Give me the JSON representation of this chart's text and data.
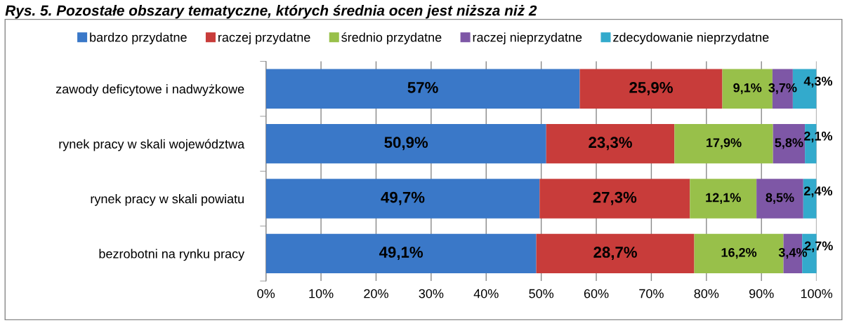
{
  "chart_data": {
    "type": "bar",
    "orientation": "horizontal",
    "stacked": true,
    "title": "Rys. 5. Pozostałe obszary tematyczne, których średnia ocen jest niższa niż 2",
    "categories": [
      "zawody deficytowe i nadwyżkowe",
      "rynek pracy w skali województwa",
      "rynek pracy w skali powiatu",
      "bezrobotni na rynku pracy"
    ],
    "series": [
      {
        "name": "bardzo przydatne",
        "color": "#3a78c8",
        "values": [
          57,
          50.9,
          49.7,
          49.1
        ],
        "value_labels": [
          "57%",
          "50,9%",
          "49,7%",
          "49,1%"
        ]
      },
      {
        "name": "raczej przydatne",
        "color": "#c83c3a",
        "values": [
          25.9,
          23.3,
          27.3,
          28.7
        ],
        "value_labels": [
          "25,9%",
          "23,3%",
          "27,3%",
          "28,7%"
        ]
      },
      {
        "name": "średnio przydatne",
        "color": "#98c04a",
        "values": [
          9.1,
          17.9,
          12.1,
          16.2
        ],
        "value_labels": [
          "9,1%",
          "17,9%",
          "12,1%",
          "16,2%"
        ]
      },
      {
        "name": "raczej nieprzydatne",
        "color": "#7e57a6",
        "values": [
          3.7,
          5.8,
          8.5,
          3.4
        ],
        "value_labels": [
          "3,7%",
          "5,8%",
          "8,5%",
          "3,4%"
        ]
      },
      {
        "name": "zdecydowanie nieprzydatne",
        "color": "#33aacc",
        "values": [
          4.3,
          2.1,
          2.4,
          2.7
        ],
        "value_labels": [
          "4,3%",
          "2,1%",
          "2,4%",
          "2,7%"
        ]
      }
    ],
    "xlim": [
      0,
      100
    ],
    "xticks": [
      {
        "value": 0,
        "label": "0%"
      },
      {
        "value": 10,
        "label": "10%"
      },
      {
        "value": 20,
        "label": "20%"
      },
      {
        "value": 30,
        "label": "30%"
      },
      {
        "value": 40,
        "label": "40%"
      },
      {
        "value": 50,
        "label": "50%"
      },
      {
        "value": 60,
        "label": "60%"
      },
      {
        "value": 70,
        "label": "70%"
      },
      {
        "value": 80,
        "label": "80%"
      },
      {
        "value": 90,
        "label": "90%"
      },
      {
        "value": 100,
        "label": "100%"
      }
    ],
    "grid": "x",
    "legend": "top"
  }
}
